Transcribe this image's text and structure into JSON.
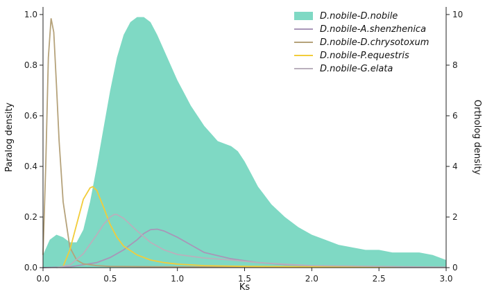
{
  "chart_data": {
    "type": "area",
    "xlabel": "Ks",
    "ylabel_left": "Paralog density",
    "ylabel_right": "Ortholog density",
    "xlim": [
      0,
      3
    ],
    "ylim_left": [
      0,
      1.03
    ],
    "ylim_right": [
      0,
      10.3
    ],
    "x_ticks": [
      "0.0",
      "0.5",
      "1.0",
      "1.5",
      "2.0",
      "2.5",
      "3.0"
    ],
    "y_ticks_left": [
      "0.0",
      "0.2",
      "0.4",
      "0.6",
      "0.8",
      "1.0"
    ],
    "y_ticks_right": [
      "0",
      "2",
      "4",
      "6",
      "8",
      "10"
    ],
    "grid": false,
    "legend_position": "top-right",
    "series": [
      {
        "name": "D.nobile-D.nobile",
        "kind": "area",
        "axis": "left",
        "color": "#7fd9c4",
        "x": [
          0,
          0.05,
          0.1,
          0.15,
          0.2,
          0.25,
          0.3,
          0.35,
          0.4,
          0.45,
          0.5,
          0.55,
          0.6,
          0.65,
          0.7,
          0.75,
          0.8,
          0.85,
          0.9,
          0.95,
          1.0,
          1.05,
          1.1,
          1.15,
          1.2,
          1.25,
          1.3,
          1.35,
          1.4,
          1.45,
          1.5,
          1.55,
          1.6,
          1.7,
          1.8,
          1.9,
          2.0,
          2.1,
          2.2,
          2.3,
          2.4,
          2.5,
          2.6,
          2.7,
          2.8,
          2.9,
          3.0
        ],
        "y": [
          0.05,
          0.11,
          0.13,
          0.12,
          0.1,
          0.1,
          0.15,
          0.26,
          0.4,
          0.55,
          0.7,
          0.83,
          0.92,
          0.97,
          0.99,
          0.99,
          0.97,
          0.92,
          0.86,
          0.8,
          0.74,
          0.69,
          0.64,
          0.6,
          0.56,
          0.53,
          0.5,
          0.49,
          0.48,
          0.46,
          0.42,
          0.37,
          0.32,
          0.25,
          0.2,
          0.16,
          0.13,
          0.11,
          0.09,
          0.08,
          0.07,
          0.07,
          0.06,
          0.06,
          0.06,
          0.05,
          0.03
        ]
      },
      {
        "name": "D.nobile-A.shenzhenica",
        "kind": "line",
        "axis": "right",
        "color": "#a896b8",
        "x": [
          0,
          0.2,
          0.4,
          0.5,
          0.6,
          0.7,
          0.75,
          0.8,
          0.85,
          0.9,
          1.0,
          1.1,
          1.2,
          1.4,
          1.6,
          1.8,
          2.0,
          2.5,
          3.0
        ],
        "y": [
          0,
          0.03,
          0.2,
          0.4,
          0.7,
          1.1,
          1.35,
          1.5,
          1.52,
          1.45,
          1.2,
          0.9,
          0.6,
          0.35,
          0.2,
          0.12,
          0.07,
          0.03,
          0.01
        ]
      },
      {
        "name": "D.nobile-D.chrysotoxum",
        "kind": "line",
        "axis": "right",
        "color": "#b5a27a",
        "x": [
          0,
          0.02,
          0.04,
          0.06,
          0.08,
          0.1,
          0.12,
          0.15,
          0.2,
          0.25,
          0.3,
          0.4,
          0.5,
          1.0,
          2.0,
          3.0
        ],
        "y": [
          0.5,
          4.0,
          8.3,
          9.85,
          9.3,
          7.2,
          5.0,
          2.6,
          0.8,
          0.3,
          0.15,
          0.08,
          0.05,
          0.03,
          0.02,
          0.01
        ]
      },
      {
        "name": "D.nobile-P.equestris",
        "kind": "line",
        "axis": "right",
        "color": "#f2cc3a",
        "x": [
          0.15,
          0.2,
          0.25,
          0.3,
          0.35,
          0.37,
          0.4,
          0.45,
          0.5,
          0.55,
          0.6,
          0.7,
          0.8,
          0.9,
          1.0,
          1.2,
          1.5,
          2.0,
          3.0
        ],
        "y": [
          0.05,
          0.7,
          1.7,
          2.7,
          3.15,
          3.2,
          3.05,
          2.4,
          1.7,
          1.2,
          0.85,
          0.5,
          0.3,
          0.2,
          0.14,
          0.08,
          0.05,
          0.03,
          0.01
        ]
      },
      {
        "name": "D.nobile-G.elata",
        "kind": "line",
        "axis": "right",
        "color": "#b9b0bc",
        "x": [
          0.1,
          0.2,
          0.3,
          0.4,
          0.45,
          0.5,
          0.53,
          0.55,
          0.6,
          0.65,
          0.7,
          0.8,
          0.9,
          1.0,
          1.2,
          1.4,
          1.6,
          2.0,
          3.0
        ],
        "y": [
          0,
          0.1,
          0.55,
          1.3,
          1.7,
          2.0,
          2.1,
          2.1,
          1.95,
          1.7,
          1.45,
          1.0,
          0.7,
          0.52,
          0.38,
          0.3,
          0.2,
          0.08,
          0.02
        ]
      }
    ]
  }
}
